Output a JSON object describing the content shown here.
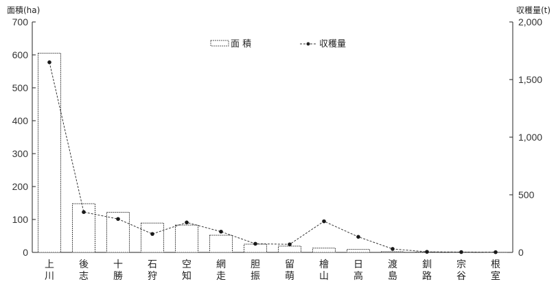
{
  "chart_data": {
    "type": "bar",
    "categories": [
      "上川",
      "後志",
      "十勝",
      "石狩",
      "空知",
      "網走",
      "胆振",
      "留萌",
      "檜山",
      "日高",
      "渡島",
      "釧路",
      "宗谷",
      "根室"
    ],
    "series": [
      {
        "name": "面 積",
        "type": "bar",
        "axis": "left",
        "values": [
          605,
          148,
          122,
          89,
          83,
          52,
          25,
          19,
          13,
          9,
          2,
          1,
          0.5,
          0.3
        ]
      },
      {
        "name": "収穫量",
        "type": "line",
        "axis": "right",
        "values": [
          1650,
          350,
          290,
          160,
          260,
          180,
          75,
          70,
          270,
          135,
          30,
          5,
          3,
          2
        ]
      }
    ],
    "ylabel_left": "面積(ha)",
    "ylabel_right": "収穫量(t)",
    "ylim_left": [
      0,
      700
    ],
    "ylim_right": [
      0,
      2000
    ],
    "yticks_left": [
      "0",
      "100",
      "200",
      "300",
      "400",
      "500",
      "600",
      "700"
    ],
    "yticks_right": [
      "0",
      "500",
      "1,000",
      "1,500",
      "2,000"
    ],
    "grid": false,
    "legend_position": "top-center"
  }
}
